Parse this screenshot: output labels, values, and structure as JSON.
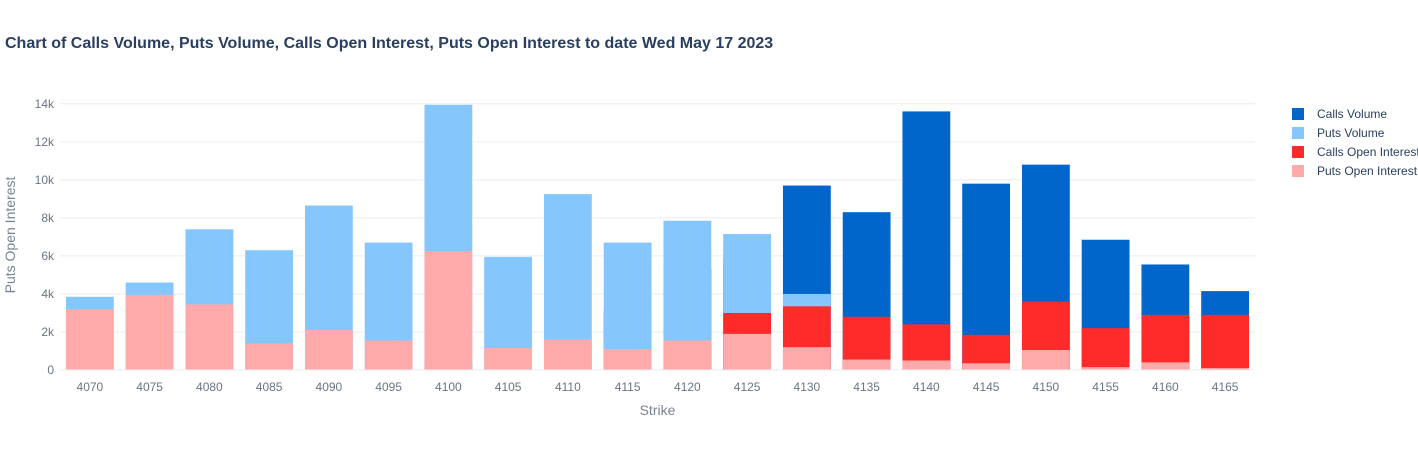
{
  "title": "Chart of Calls Volume, Puts Volume, Calls Open Interest, Puts Open Interest to date Wed May 17 2023",
  "chart_data": {
    "type": "bar",
    "barmode": "overlay",
    "title": "Chart of Calls Volume, Puts Volume, Calls Open Interest, Puts Open Interest to date Wed May 17 2023",
    "xlabel": "Strike",
    "ylabel": "Puts Open Interest",
    "ylim": [
      0,
      14200
    ],
    "yticks": [
      0,
      2000,
      4000,
      6000,
      8000,
      10000,
      12000,
      14000
    ],
    "ytick_labels": [
      "0",
      "2k",
      "4k",
      "6k",
      "8k",
      "10k",
      "12k",
      "14k"
    ],
    "grid": true,
    "legend_position": "right",
    "categories": [
      "4070",
      "4075",
      "4080",
      "4085",
      "4090",
      "4095",
      "4100",
      "4105",
      "4110",
      "4115",
      "4120",
      "4125",
      "4130",
      "4135",
      "4140",
      "4145",
      "4150",
      "4155",
      "4160",
      "4165"
    ],
    "series": [
      {
        "name": "Calls Volume",
        "color": "#0066cc",
        "values": [
          0,
          0,
          0,
          0,
          0,
          0,
          400,
          0,
          0,
          3100,
          5300,
          5900,
          9700,
          8300,
          13600,
          9800,
          10800,
          6850,
          5550,
          4150
        ]
      },
      {
        "name": "Puts Volume",
        "color": "#85c6fd",
        "values": [
          3850,
          4600,
          7400,
          6300,
          8650,
          6700,
          13950,
          5950,
          9250,
          6700,
          7850,
          7150,
          4000,
          0,
          0,
          0,
          0,
          0,
          0,
          0
        ]
      },
      {
        "name": "Calls Open Interest",
        "color": "#ff2a2a",
        "values": [
          0,
          0,
          0,
          0,
          0,
          0,
          0,
          0,
          0,
          0,
          0,
          3000,
          3350,
          2800,
          2400,
          1850,
          3600,
          2200,
          2900,
          2900
        ]
      },
      {
        "name": "Puts Open Interest",
        "color": "#ffaaaa",
        "values": [
          3200,
          3950,
          3450,
          1400,
          2100,
          1550,
          6250,
          1150,
          1600,
          1100,
          1550,
          1900,
          1200,
          550,
          500,
          350,
          1050,
          150,
          400,
          100
        ]
      }
    ]
  }
}
